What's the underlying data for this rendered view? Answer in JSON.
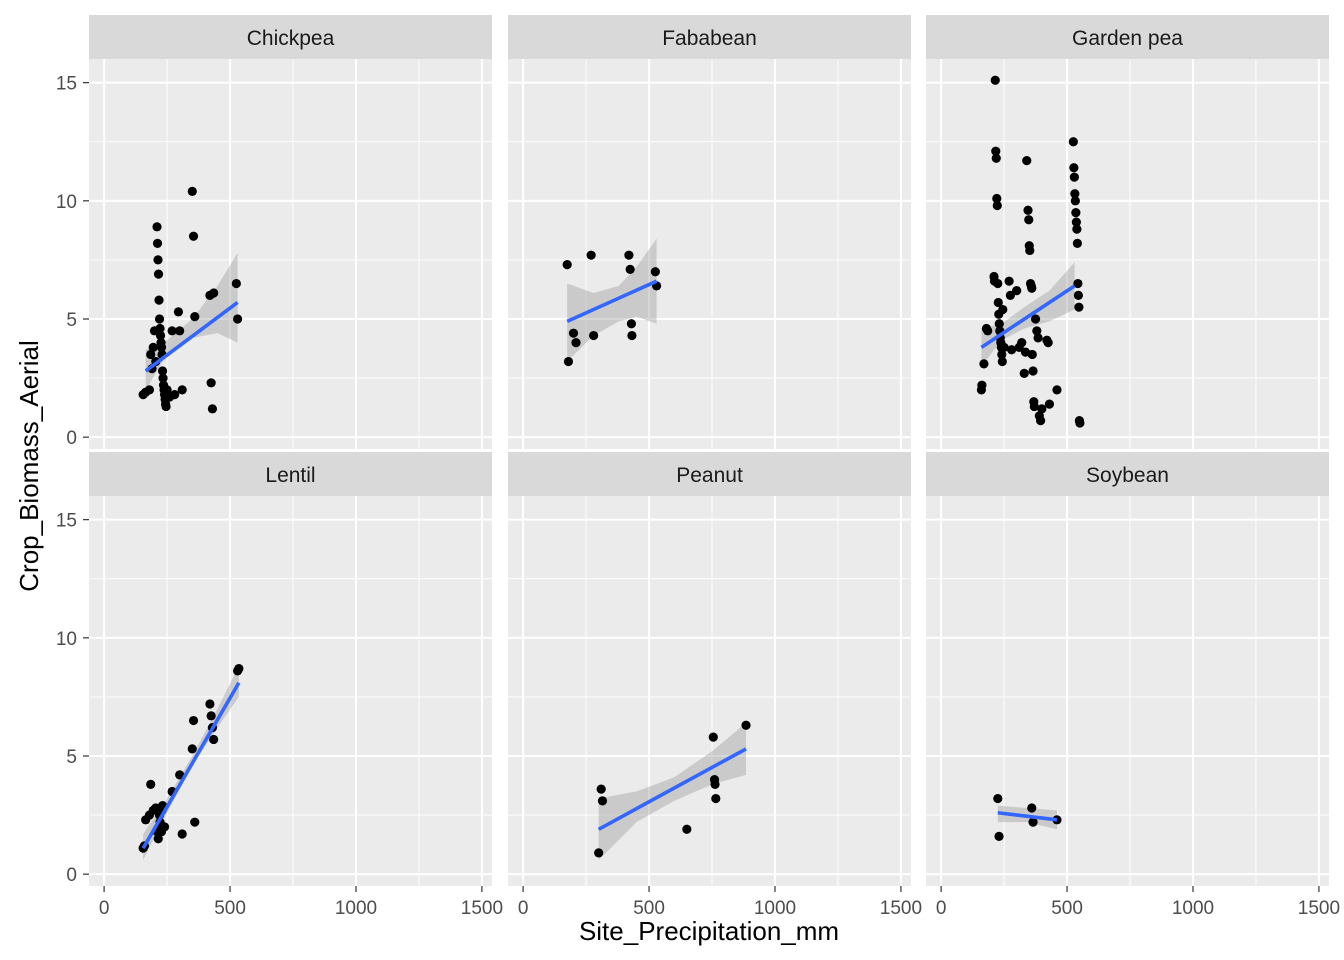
{
  "chart_data": {
    "type": "scatter",
    "facet_layout": "2 rows x 3 columns, shared axes",
    "xlabel": "Site_Precipitation_mm",
    "ylabel": "Crop_Biomass_Aerial",
    "xlim": [
      -60,
      1540
    ],
    "ylim": [
      -0.5,
      16
    ],
    "x_ticks": [
      0,
      500,
      1000,
      1500
    ],
    "x_tick_labels": [
      "0",
      "500",
      "1000",
      "1500"
    ],
    "y_ticks": [
      0,
      5,
      10,
      15
    ],
    "y_tick_labels": [
      "0",
      "5",
      "10",
      "15"
    ],
    "grid": true,
    "smooth": "linear fit with confidence band",
    "colors": {
      "panel_bg": "#ebebeb",
      "strip_bg": "#d9d9d9",
      "grid": "#ffffff",
      "point": "#000000",
      "fit_line": "#3366ff",
      "ci_band": "#999999"
    },
    "panels": [
      {
        "title": "Chickpea",
        "points": [
          [
            155,
            1.8
          ],
          [
            165,
            1.9
          ],
          [
            180,
            2.0
          ],
          [
            185,
            3.5
          ],
          [
            190,
            2.9
          ],
          [
            195,
            3.8
          ],
          [
            200,
            4.5
          ],
          [
            205,
            3.2
          ],
          [
            210,
            8.9
          ],
          [
            212,
            8.2
          ],
          [
            214,
            7.5
          ],
          [
            216,
            6.9
          ],
          [
            218,
            5.8
          ],
          [
            220,
            5.0
          ],
          [
            222,
            4.6
          ],
          [
            224,
            4.3
          ],
          [
            226,
            4.0
          ],
          [
            228,
            3.8
          ],
          [
            230,
            3.5
          ],
          [
            232,
            2.8
          ],
          [
            234,
            2.5
          ],
          [
            236,
            2.2
          ],
          [
            238,
            2.0
          ],
          [
            240,
            1.8
          ],
          [
            242,
            1.6
          ],
          [
            244,
            1.4
          ],
          [
            246,
            1.3
          ],
          [
            250,
            2.0
          ],
          [
            260,
            1.7
          ],
          [
            270,
            4.5
          ],
          [
            280,
            1.8
          ],
          [
            295,
            5.3
          ],
          [
            300,
            4.5
          ],
          [
            310,
            2.0
          ],
          [
            350,
            10.4
          ],
          [
            355,
            8.5
          ],
          [
            360,
            5.1
          ],
          [
            420,
            6.0
          ],
          [
            425,
            2.3
          ],
          [
            430,
            1.2
          ],
          [
            435,
            6.1
          ],
          [
            525,
            6.5
          ],
          [
            530,
            5.0
          ]
        ],
        "fit": {
          "x0": 165,
          "y0": 2.8,
          "x1": 530,
          "y1": 5.7
        },
        "ci_lower": [
          [
            165,
            2.0
          ],
          [
            250,
            3.5
          ],
          [
            350,
            4.2
          ],
          [
            450,
            4.4
          ],
          [
            530,
            4.0
          ]
        ],
        "ci_upper": [
          [
            165,
            3.7
          ],
          [
            250,
            4.1
          ],
          [
            350,
            5.0
          ],
          [
            450,
            6.4
          ],
          [
            530,
            7.8
          ]
        ]
      },
      {
        "title": "Fababean",
        "points": [
          [
            175,
            7.3
          ],
          [
            180,
            3.2
          ],
          [
            200,
            4.4
          ],
          [
            210,
            4.0
          ],
          [
            270,
            7.7
          ],
          [
            280,
            4.3
          ],
          [
            420,
            7.7
          ],
          [
            425,
            7.1
          ],
          [
            430,
            4.8
          ],
          [
            432,
            4.3
          ],
          [
            525,
            7.0
          ],
          [
            530,
            6.4
          ]
        ],
        "fit": {
          "x0": 175,
          "y0": 4.9,
          "x1": 530,
          "y1": 6.6
        },
        "ci_lower": [
          [
            175,
            3.2
          ],
          [
            280,
            4.3
          ],
          [
            380,
            4.9
          ],
          [
            450,
            5.1
          ],
          [
            530,
            4.8
          ]
        ],
        "ci_upper": [
          [
            175,
            6.5
          ],
          [
            280,
            6.1
          ],
          [
            380,
            6.4
          ],
          [
            450,
            7.2
          ],
          [
            530,
            8.4
          ]
        ]
      },
      {
        "title": "Garden pea",
        "points": [
          [
            160,
            2.0
          ],
          [
            162,
            2.2
          ],
          [
            170,
            3.1
          ],
          [
            180,
            4.6
          ],
          [
            185,
            4.5
          ],
          [
            210,
            6.8
          ],
          [
            212,
            6.6
          ],
          [
            215,
            15.1
          ],
          [
            217,
            12.1
          ],
          [
            219,
            11.8
          ],
          [
            221,
            10.1
          ],
          [
            223,
            9.8
          ],
          [
            225,
            6.5
          ],
          [
            227,
            5.7
          ],
          [
            229,
            5.2
          ],
          [
            231,
            4.8
          ],
          [
            233,
            4.5
          ],
          [
            235,
            4.2
          ],
          [
            237,
            4.0
          ],
          [
            239,
            3.8
          ],
          [
            241,
            3.5
          ],
          [
            243,
            3.2
          ],
          [
            245,
            5.4
          ],
          [
            250,
            3.8
          ],
          [
            270,
            6.6
          ],
          [
            275,
            6.0
          ],
          [
            280,
            3.7
          ],
          [
            300,
            6.2
          ],
          [
            310,
            3.8
          ],
          [
            320,
            4.0
          ],
          [
            330,
            2.7
          ],
          [
            335,
            3.6
          ],
          [
            340,
            11.7
          ],
          [
            345,
            9.6
          ],
          [
            348,
            9.2
          ],
          [
            350,
            8.1
          ],
          [
            352,
            7.9
          ],
          [
            355,
            6.5
          ],
          [
            358,
            6.4
          ],
          [
            360,
            6.3
          ],
          [
            362,
            3.5
          ],
          [
            365,
            2.8
          ],
          [
            368,
            1.5
          ],
          [
            370,
            1.3
          ],
          [
            375,
            5.0
          ],
          [
            380,
            4.5
          ],
          [
            385,
            4.2
          ],
          [
            390,
            0.9
          ],
          [
            395,
            0.7
          ],
          [
            400,
            1.2
          ],
          [
            420,
            4.1
          ],
          [
            425,
            4.0
          ],
          [
            430,
            1.4
          ],
          [
            460,
            2.0
          ],
          [
            525,
            12.5
          ],
          [
            527,
            11.4
          ],
          [
            529,
            11.0
          ],
          [
            531,
            10.3
          ],
          [
            533,
            10.0
          ],
          [
            535,
            9.5
          ],
          [
            537,
            9.1
          ],
          [
            539,
            8.8
          ],
          [
            541,
            8.2
          ],
          [
            543,
            6.5
          ],
          [
            545,
            6.0
          ],
          [
            547,
            5.5
          ],
          [
            549,
            0.7
          ],
          [
            551,
            0.6
          ]
        ],
        "fit": {
          "x0": 160,
          "y0": 3.8,
          "x1": 530,
          "y1": 6.4
        },
        "ci_lower": [
          [
            160,
            3.0
          ],
          [
            240,
            4.1
          ],
          [
            330,
            4.6
          ],
          [
            430,
            4.9
          ],
          [
            530,
            5.4
          ]
        ],
        "ci_upper": [
          [
            160,
            4.6
          ],
          [
            240,
            4.8
          ],
          [
            330,
            5.5
          ],
          [
            430,
            6.2
          ],
          [
            530,
            7.4
          ]
        ]
      },
      {
        "title": "Lentil",
        "points": [
          [
            155,
            1.1
          ],
          [
            160,
            1.2
          ],
          [
            165,
            2.3
          ],
          [
            180,
            2.5
          ],
          [
            185,
            3.8
          ],
          [
            195,
            2.7
          ],
          [
            205,
            2.8
          ],
          [
            210,
            1.8
          ],
          [
            215,
            1.5
          ],
          [
            220,
            2.5
          ],
          [
            222,
            2.2
          ],
          [
            224,
            2.0
          ],
          [
            226,
            1.9
          ],
          [
            228,
            1.8
          ],
          [
            230,
            2.7
          ],
          [
            232,
            2.9
          ],
          [
            240,
            2.0
          ],
          [
            270,
            3.5
          ],
          [
            300,
            4.2
          ],
          [
            310,
            1.7
          ],
          [
            350,
            5.3
          ],
          [
            355,
            6.5
          ],
          [
            360,
            2.2
          ],
          [
            420,
            7.2
          ],
          [
            425,
            6.7
          ],
          [
            430,
            6.2
          ],
          [
            435,
            5.7
          ],
          [
            530,
            8.6
          ],
          [
            535,
            8.7
          ]
        ],
        "fit": {
          "x0": 155,
          "y0": 1.1,
          "x1": 535,
          "y1": 8.1
        },
        "ci_lower": [
          [
            155,
            0.6
          ],
          [
            250,
            2.6
          ],
          [
            350,
            4.6
          ],
          [
            450,
            6.2
          ],
          [
            535,
            7.5
          ]
        ],
        "ci_upper": [
          [
            155,
            1.7
          ],
          [
            250,
            3.2
          ],
          [
            350,
            5.0
          ],
          [
            450,
            7.0
          ],
          [
            535,
            8.8
          ]
        ]
      },
      {
        "title": "Peanut",
        "points": [
          [
            300,
            0.9
          ],
          [
            310,
            3.6
          ],
          [
            315,
            3.1
          ],
          [
            650,
            1.9
          ],
          [
            755,
            5.8
          ],
          [
            760,
            4.0
          ],
          [
            762,
            3.8
          ],
          [
            765,
            3.2
          ],
          [
            885,
            6.3
          ]
        ],
        "fit": {
          "x0": 300,
          "y0": 1.9,
          "x1": 885,
          "y1": 5.3
        },
        "ci_lower": [
          [
            300,
            0.6
          ],
          [
            450,
            2.2
          ],
          [
            600,
            3.1
          ],
          [
            750,
            3.8
          ],
          [
            885,
            4.2
          ]
        ],
        "ci_upper": [
          [
            300,
            3.2
          ],
          [
            450,
            3.5
          ],
          [
            600,
            4.1
          ],
          [
            750,
            5.2
          ],
          [
            885,
            6.4
          ]
        ]
      },
      {
        "title": "Soybean",
        "points": [
          [
            225,
            3.2
          ],
          [
            230,
            1.6
          ],
          [
            360,
            2.8
          ],
          [
            365,
            2.2
          ],
          [
            460,
            2.3
          ]
        ],
        "fit": {
          "x0": 225,
          "y0": 2.6,
          "x1": 460,
          "y1": 2.3
        },
        "ci_lower": [
          [
            225,
            2.2
          ],
          [
            340,
            2.2
          ],
          [
            460,
            1.9
          ]
        ],
        "ci_upper": [
          [
            225,
            2.9
          ],
          [
            340,
            2.8
          ],
          [
            460,
            2.7
          ]
        ]
      }
    ]
  }
}
